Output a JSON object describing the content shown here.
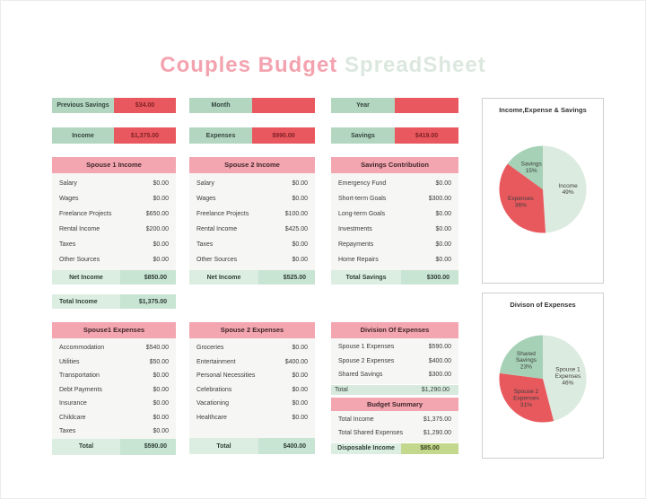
{
  "page_title": {
    "part1": "Couples Budget",
    "part2": " SpreadSheet"
  },
  "top_bars": [
    {
      "label": "Previous Savings",
      "value": "$34.00"
    },
    {
      "label": "Month",
      "value": ""
    },
    {
      "label": "Year",
      "value": ""
    }
  ],
  "kpi_bars": [
    {
      "label": "Income",
      "value": "$1,375.00"
    },
    {
      "label": "Expenses",
      "value": "$990.00"
    },
    {
      "label": "Savings",
      "value": "$419.00"
    }
  ],
  "spouse1_income": {
    "header": "Spouse 1 Income",
    "rows": [
      [
        "Salary",
        "$0.00"
      ],
      [
        "Wages",
        "$0.00"
      ],
      [
        "Freelance Projects",
        "$650.00"
      ],
      [
        "Rental Income",
        "$200.00"
      ],
      [
        "Taxes",
        "$0.00"
      ],
      [
        "Other Sources",
        "$0.00"
      ]
    ],
    "total_label": "Net Income",
    "total_value": "$850.00"
  },
  "spouse2_income": {
    "header": "Spouse 2 Income",
    "rows": [
      [
        "Salary",
        "$0.00"
      ],
      [
        "Wages",
        "$0.00"
      ],
      [
        "Freelance Projects",
        "$100.00"
      ],
      [
        "Rental Income",
        "$425.00"
      ],
      [
        "Taxes",
        "$0.00"
      ],
      [
        "Other Sources",
        "$0.00"
      ]
    ],
    "total_label": "Net Income",
    "total_value": "$525.00"
  },
  "savings_contribution": {
    "header": "Savings Contribution",
    "rows": [
      [
        "Emergency Fund",
        "$0.00"
      ],
      [
        "Short-term Goals",
        "$300.00"
      ],
      [
        "Long-term Goals",
        "$0.00"
      ],
      [
        "Investments",
        "$0.00"
      ],
      [
        "Repayments",
        "$0.00"
      ],
      [
        "Home Repairs",
        "$0.00"
      ]
    ],
    "total_label": "Total  Savings",
    "total_value": "$300.00"
  },
  "total_income_bar": {
    "label": "Total Income",
    "value": "$1,375.00"
  },
  "spouse1_expenses": {
    "header": "Spouse1  Expenses",
    "rows": [
      [
        "Accommodation",
        "$540.00"
      ],
      [
        "Utilities",
        "$50.00"
      ],
      [
        "Transportation",
        "$0.00"
      ],
      [
        "Debt Payments",
        "$0.00"
      ],
      [
        "Insurance",
        "$0.00"
      ],
      [
        "Childcare",
        "$0.00"
      ],
      [
        "Taxes",
        "$0.00"
      ]
    ],
    "total_label": "Total",
    "total_value": "$590.00"
  },
  "spouse2_expenses": {
    "header": "Spouse 2 Expenses",
    "rows": [
      [
        "Groceries",
        "$0.00"
      ],
      [
        "Entertainment",
        "$400.00"
      ],
      [
        "Personal Necessities",
        "$0.00"
      ],
      [
        "Celebrations",
        "$0.00"
      ],
      [
        "Vacationing",
        "$0.00"
      ],
      [
        "Healthcare",
        "$0.00"
      ]
    ],
    "total_label": "Total",
    "total_value": "$400.00"
  },
  "division_of_expenses": {
    "header": "Division Of Expenses",
    "rows": [
      [
        "Spouse 1  Expenses",
        "$590.00"
      ],
      [
        "Spouse 2 Expenses",
        "$400.00"
      ],
      [
        "Shared Savings",
        "$300.00"
      ]
    ],
    "total_label": "Total",
    "total_value": "$1,290.00"
  },
  "budget_summary": {
    "header": "Budget Summary",
    "rows": [
      [
        "Total Income",
        "$1,375.00"
      ],
      [
        "Total Shared Expenses",
        "$1,290.00"
      ]
    ],
    "disposable_label": "Disposable Income",
    "disposable_value": "$85.00"
  },
  "colors": {
    "green_bar": "#b2d6c0",
    "red_bar": "#e9585e",
    "pink_header": "#f3a6b0",
    "total_label_bg": "#dcede2",
    "total_value_bg": "#c8e4d2",
    "disposable_bg": "#c3d88d",
    "pie_light_green": "#dcebe0",
    "pie_red": "#e8595e",
    "pie_medium_green": "#a6d1b6"
  },
  "chart_data": [
    {
      "type": "pie",
      "title": "Income,Expense & Savings",
      "legend_position": "none",
      "label_position": "inside",
      "slices": [
        {
          "name": "Income",
          "pct": 49,
          "value": 1375.0,
          "color": "#dcebe0",
          "label_lines": [
            "Income",
            "49%"
          ]
        },
        {
          "name": "Expenses",
          "pct": 36,
          "value": 990.0,
          "color": "#e8595e",
          "label_lines": [
            "Expenses",
            "36%"
          ]
        },
        {
          "name": "Savings",
          "pct": 15,
          "value": 419.0,
          "color": "#a6d1b6",
          "label_lines": [
            "Savings",
            "15%"
          ]
        }
      ]
    },
    {
      "type": "pie",
      "title": "Divison of Expenses",
      "legend_position": "none",
      "label_position": "inside",
      "slices": [
        {
          "name": "Spouse 1 Expenses",
          "pct": 46,
          "value": 590.0,
          "color": "#dcebe0",
          "label_lines": [
            "Spouse 1",
            "Expenses",
            "46%"
          ]
        },
        {
          "name": "Spouse 2 Expenses",
          "pct": 31,
          "value": 400.0,
          "color": "#e8595e",
          "label_lines": [
            "Spouse 2",
            "Expenses",
            "31%"
          ]
        },
        {
          "name": "Shared Savings",
          "pct": 23,
          "value": 300.0,
          "color": "#a6d1b6",
          "label_lines": [
            "Shared",
            "Savings",
            "23%"
          ]
        }
      ]
    }
  ]
}
